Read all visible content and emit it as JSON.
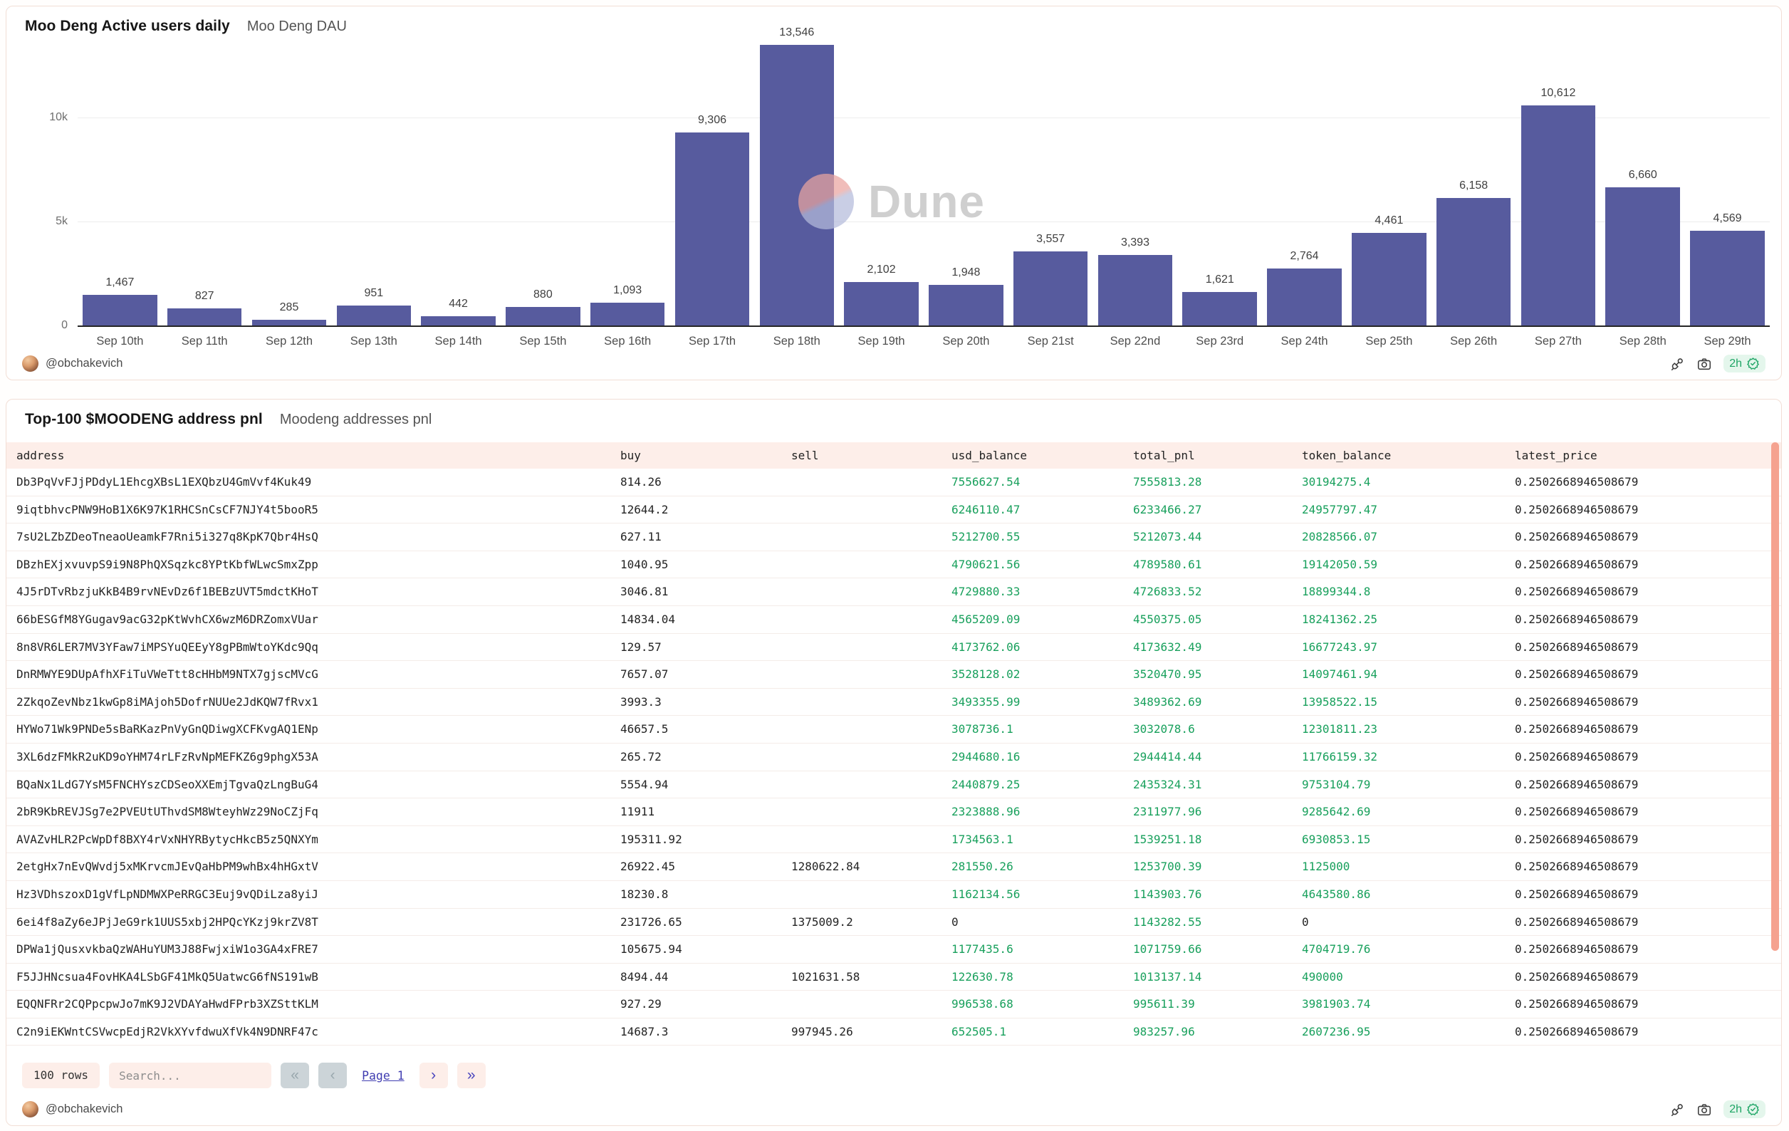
{
  "watermark": "Dune",
  "colors": {
    "bar": "#575b9e",
    "positive_green": "#18a05c",
    "badge_green": "#1ea565",
    "scrollbar": "#f5a28f",
    "header_bg": "#fdeee9"
  },
  "chart_panel": {
    "title": "Moo Deng Active users daily",
    "subtitle": "Moo Deng DAU",
    "footer": {
      "author": "@obchakevich",
      "refresh": "2h"
    }
  },
  "chart_data": {
    "type": "bar",
    "title": "Moo Deng Active users daily",
    "subtitle": "Moo Deng DAU",
    "categories": [
      "Sep 10th",
      "Sep 11th",
      "Sep 12th",
      "Sep 13th",
      "Sep 14th",
      "Sep 15th",
      "Sep 16th",
      "Sep 17th",
      "Sep 18th",
      "Sep 19th",
      "Sep 20th",
      "Sep 21st",
      "Sep 22nd",
      "Sep 23rd",
      "Sep 24th",
      "Sep 25th",
      "Sep 26th",
      "Sep 27th",
      "Sep 28th",
      "Sep 29th"
    ],
    "values": [
      1467,
      827,
      285,
      951,
      442,
      880,
      1093,
      9306,
      13546,
      2102,
      1948,
      3557,
      3393,
      1621,
      2764,
      4461,
      6158,
      10612,
      6660,
      4569
    ],
    "bar_labels": [
      "1,467",
      "827",
      "285",
      "951",
      "442",
      "880",
      "1,093",
      "9,306",
      "13,546",
      "2,102",
      "1,948",
      "3,557",
      "3,393",
      "1,621",
      "2,764",
      "4,461",
      "6,158",
      "10,612",
      "6,660",
      "4,569"
    ],
    "xlabel": "",
    "ylabel": "",
    "yticks": {
      "y0": "0",
      "y5k": "5k",
      "y10k": "10k"
    },
    "ylim": [
      0,
      14150
    ],
    "grid": "horizontal",
    "legend": "none",
    "bar_color": "#575b9e"
  },
  "table_panel": {
    "title": "Top-100 $MOODENG address pnl",
    "subtitle": "Moodeng addresses pnl",
    "columns": [
      "address",
      "buy",
      "sell",
      "usd_balance",
      "total_pnl",
      "token_balance",
      "latest_price"
    ],
    "rows": [
      {
        "address": "Db3PqVvFJjPDdyL1EhcgXBsL1EXQbzU4GmVvf4Kuk49",
        "buy": "814.26",
        "sell": "",
        "usd_balance": "7556627.54",
        "total_pnl": "7555813.28",
        "token_balance": "30194275.4",
        "latest_price": "0.2502668946508679"
      },
      {
        "address": "9iqtbhvcPNW9HoB1X6K97K1RHCSnCsCF7NJY4t5booR5",
        "buy": "12644.2",
        "sell": "",
        "usd_balance": "6246110.47",
        "total_pnl": "6233466.27",
        "token_balance": "24957797.47",
        "latest_price": "0.2502668946508679"
      },
      {
        "address": "7sU2LZbZDeoTneaoUeamkF7Rni5i327q8KpK7Qbr4HsQ",
        "buy": "627.11",
        "sell": "",
        "usd_balance": "5212700.55",
        "total_pnl": "5212073.44",
        "token_balance": "20828566.07",
        "latest_price": "0.2502668946508679"
      },
      {
        "address": "DBzhEXjxvuvpS9i9N8PhQXSqzkc8YPtKbfWLwcSmxZpp",
        "buy": "1040.95",
        "sell": "",
        "usd_balance": "4790621.56",
        "total_pnl": "4789580.61",
        "token_balance": "19142050.59",
        "latest_price": "0.2502668946508679"
      },
      {
        "address": "4J5rDTvRbzjuKkB4B9rvNEvDz6f1BEBzUVT5mdctKHoT",
        "buy": "3046.81",
        "sell": "",
        "usd_balance": "4729880.33",
        "total_pnl": "4726833.52",
        "token_balance": "18899344.8",
        "latest_price": "0.2502668946508679"
      },
      {
        "address": "66bESGfM8YGugav9acG32pKtWvhCX6wzM6DRZomxVUar",
        "buy": "14834.04",
        "sell": "",
        "usd_balance": "4565209.09",
        "total_pnl": "4550375.05",
        "token_balance": "18241362.25",
        "latest_price": "0.2502668946508679"
      },
      {
        "address": "8n8VR6LER7MV3YFaw7iMPSYuQEEyY8gPBmWtoYKdc9Qq",
        "buy": "129.57",
        "sell": "",
        "usd_balance": "4173762.06",
        "total_pnl": "4173632.49",
        "token_balance": "16677243.97",
        "latest_price": "0.2502668946508679"
      },
      {
        "address": "DnRMWYE9DUpAfhXFiTuVWeTtt8cHHbM9NTX7gjscMVcG",
        "buy": "7657.07",
        "sell": "",
        "usd_balance": "3528128.02",
        "total_pnl": "3520470.95",
        "token_balance": "14097461.94",
        "latest_price": "0.2502668946508679"
      },
      {
        "address": "2ZkqoZevNbz1kwGp8iMAjoh5DofrNUUe2JdKQW7fRvx1",
        "buy": "3993.3",
        "sell": "",
        "usd_balance": "3493355.99",
        "total_pnl": "3489362.69",
        "token_balance": "13958522.15",
        "latest_price": "0.2502668946508679"
      },
      {
        "address": "HYWo71Wk9PNDe5sBaRKazPnVyGnQDiwgXCFKvgAQ1ENp",
        "buy": "46657.5",
        "sell": "",
        "usd_balance": "3078736.1",
        "total_pnl": "3032078.6",
        "token_balance": "12301811.23",
        "latest_price": "0.2502668946508679"
      },
      {
        "address": "3XL6dzFMkR2uKD9oYHM74rLFzRvNpMEFKZ6g9phgX53A",
        "buy": "265.72",
        "sell": "",
        "usd_balance": "2944680.16",
        "total_pnl": "2944414.44",
        "token_balance": "11766159.32",
        "latest_price": "0.2502668946508679"
      },
      {
        "address": "BQaNx1LdG7YsM5FNCHYszCDSeoXXEmjTgvaQzLngBuG4",
        "buy": "5554.94",
        "sell": "",
        "usd_balance": "2440879.25",
        "total_pnl": "2435324.31",
        "token_balance": "9753104.79",
        "latest_price": "0.2502668946508679"
      },
      {
        "address": "2bR9KbREVJSg7e2PVEUtUThvdSM8WteyhWz29NoCZjFq",
        "buy": "11911",
        "sell": "",
        "usd_balance": "2323888.96",
        "total_pnl": "2311977.96",
        "token_balance": "9285642.69",
        "latest_price": "0.2502668946508679"
      },
      {
        "address": "AVAZvHLR2PcWpDf8BXY4rVxNHYRBytycHkcB5z5QNXYm",
        "buy": "195311.92",
        "sell": "",
        "usd_balance": "1734563.1",
        "total_pnl": "1539251.18",
        "token_balance": "6930853.15",
        "latest_price": "0.2502668946508679"
      },
      {
        "address": "2etgHx7nEvQWvdj5xMKrvcmJEvQaHbPM9whBx4hHGxtV",
        "buy": "26922.45",
        "sell": "1280622.84",
        "usd_balance": "281550.26",
        "total_pnl": "1253700.39",
        "token_balance": "1125000",
        "latest_price": "0.2502668946508679"
      },
      {
        "address": "Hz3VDhszoxD1gVfLpNDMWXPeRRGC3Euj9vQDiLza8yiJ",
        "buy": "18230.8",
        "sell": "",
        "usd_balance": "1162134.56",
        "total_pnl": "1143903.76",
        "token_balance": "4643580.86",
        "latest_price": "0.2502668946508679"
      },
      {
        "address": "6ei4f8aZy6eJPjJeG9rk1UUS5xbj2HPQcYKzj9krZV8T",
        "buy": "231726.65",
        "sell": "1375009.2",
        "usd_balance": "0",
        "total_pnl": "1143282.55",
        "token_balance": "0",
        "latest_price": "0.2502668946508679"
      },
      {
        "address": "DPWa1jQusxvkbaQzWAHuYUM3J88FwjxiW1o3GA4xFRE7",
        "buy": "105675.94",
        "sell": "",
        "usd_balance": "1177435.6",
        "total_pnl": "1071759.66",
        "token_balance": "4704719.76",
        "latest_price": "0.2502668946508679"
      },
      {
        "address": "F5JJHNcsua4FovHKA4LSbGF41MkQ5UatwcG6fNS191wB",
        "buy": "8494.44",
        "sell": "1021631.58",
        "usd_balance": "122630.78",
        "total_pnl": "1013137.14",
        "token_balance": "490000",
        "latest_price": "0.2502668946508679"
      },
      {
        "address": "EQQNFRr2CQPpcpwJo7mK9J2VDAYaHwdFPrb3XZSttKLM",
        "buy": "927.29",
        "sell": "",
        "usd_balance": "996538.68",
        "total_pnl": "995611.39",
        "token_balance": "3981903.74",
        "latest_price": "0.2502668946508679"
      },
      {
        "address": "C2n9iEKWntCSVwcpEdjR2VkXYvfdwuXfVk4N9DNRF47c",
        "buy": "14687.3",
        "sell": "997945.26",
        "usd_balance": "652505.1",
        "total_pnl": "983257.96",
        "token_balance": "2607236.95",
        "latest_price": "0.2502668946508679"
      }
    ],
    "controls": {
      "rows_label": "100 rows",
      "search_placeholder": "Search...",
      "first_glyph": "«",
      "prev_glyph": "‹",
      "page_label": "Page 1",
      "next_glyph": "›",
      "last_glyph": "»"
    },
    "footer": {
      "author": "@obchakevich",
      "refresh": "2h"
    }
  }
}
